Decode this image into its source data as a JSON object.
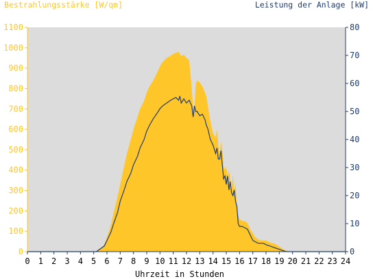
{
  "chart_data": {
    "type": "area",
    "ylabel_left": "Bestrahlungsstärke [W/qm]",
    "ylabel_right": "Leistung der Anlage [kW]",
    "xlabel": "Uhrzeit in Stunden",
    "xlim": [
      0,
      24
    ],
    "ylim_left": [
      0,
      1100
    ],
    "ylim_right": [
      0,
      80
    ],
    "x_ticks": [
      "0",
      "1",
      "2",
      "3",
      "4",
      "5",
      "6",
      "7",
      "8",
      "9",
      "10",
      "11",
      "12",
      "13",
      "14",
      "15",
      "16",
      "17",
      "18",
      "19",
      "20",
      "21",
      "22",
      "23",
      "24"
    ],
    "y_ticks_left": [
      "0",
      "100",
      "200",
      "300",
      "400",
      "500",
      "600",
      "700",
      "800",
      "900",
      "1000",
      "1100"
    ],
    "y_ticks_right": [
      "0",
      "10",
      "20",
      "30",
      "40",
      "50",
      "60",
      "70",
      "80"
    ],
    "grid": false,
    "colors": {
      "irradiance": "#FFC62A",
      "power": "#1F3B6E",
      "plot_background": "#DCDCDC",
      "axis_left": "#FFC62A",
      "axis_right": "#1F3B6E",
      "axis_bottom": "#1F3B6E"
    },
    "series": [
      {
        "axis": "left",
        "style": "area",
        "x": [
          0,
          5,
          5.3,
          5.5,
          5.8,
          6,
          6.3,
          6.5,
          6.8,
          7,
          7.3,
          7.5,
          7.8,
          8,
          8.3,
          8.5,
          8.8,
          9,
          9.2,
          9.5,
          9.8,
          10,
          10.2,
          10.5,
          10.8,
          11,
          11.2,
          11.4,
          11.5,
          11.6,
          11.8,
          12,
          12.2,
          12.4,
          12.5,
          12.6,
          12.7,
          12.8,
          13,
          13.2,
          13.4,
          13.5,
          13.6,
          13.8,
          14,
          14.2,
          14.3,
          14.4,
          14.5,
          14.6,
          14.7,
          14.8,
          14.9,
          15,
          15.1,
          15.2,
          15.3,
          15.4,
          15.5,
          15.6,
          15.7,
          15.8,
          15.9,
          16,
          16.2,
          16.4,
          16.6,
          16.8,
          17,
          17.2,
          17.4,
          17.6,
          17.8,
          18,
          18.3,
          18.6,
          18.9,
          19.2,
          19.5,
          19.8,
          20,
          24
        ],
        "y": [
          0,
          0,
          5,
          15,
          35,
          70,
          130,
          190,
          270,
          330,
          420,
          480,
          550,
          600,
          660,
          700,
          740,
          780,
          810,
          840,
          880,
          910,
          930,
          950,
          960,
          970,
          975,
          980,
          970,
          960,
          965,
          950,
          940,
          800,
          700,
          700,
          820,
          840,
          830,
          810,
          780,
          760,
          720,
          640,
          580,
          560,
          600,
          520,
          480,
          540,
          500,
          420,
          400,
          420,
          370,
          400,
          360,
          300,
          380,
          290,
          340,
          200,
          180,
          160,
          150,
          150,
          140,
          110,
          90,
          70,
          60,
          55,
          55,
          55,
          45,
          40,
          30,
          15,
          5,
          2,
          0,
          0
        ]
      },
      {
        "axis": "right",
        "style": "line",
        "x": [
          0,
          5.2,
          5.5,
          5.8,
          6,
          6.3,
          6.5,
          6.8,
          7,
          7.3,
          7.5,
          7.8,
          8,
          8.3,
          8.5,
          8.8,
          9,
          9.2,
          9.5,
          9.8,
          10,
          10.2,
          10.5,
          10.8,
          11,
          11.2,
          11.4,
          11.5,
          11.6,
          11.8,
          12,
          12.2,
          12.4,
          12.5,
          12.6,
          12.7,
          12.8,
          13,
          13.2,
          13.4,
          13.5,
          13.6,
          13.8,
          14,
          14.2,
          14.3,
          14.4,
          14.5,
          14.6,
          14.7,
          14.8,
          14.9,
          15,
          15.1,
          15.2,
          15.3,
          15.4,
          15.5,
          15.6,
          15.7,
          15.8,
          15.9,
          16,
          16.2,
          16.4,
          16.6,
          16.8,
          17,
          17.2,
          17.4,
          17.6,
          17.8,
          18,
          18.3,
          18.6,
          18.9,
          19.2,
          19.5,
          19.8,
          20,
          24
        ],
        "y": [
          0,
          0,
          1,
          2,
          4,
          7,
          10,
          14,
          18,
          22,
          25,
          28,
          31,
          34,
          37,
          40,
          43,
          45,
          47.5,
          49.5,
          51,
          52,
          53,
          54,
          54.5,
          55,
          54,
          55.5,
          53,
          54.5,
          53,
          54,
          52,
          48,
          52,
          50,
          50,
          48.5,
          49,
          47,
          45,
          44,
          40,
          38,
          35,
          37,
          33,
          33,
          36,
          31,
          26,
          27,
          24,
          27,
          22,
          25,
          21,
          20,
          22,
          18,
          16,
          10,
          9,
          9,
          8.5,
          8,
          6,
          4,
          3.5,
          3,
          3,
          3,
          2.5,
          2,
          1.5,
          1,
          0.5,
          0,
          0,
          0,
          0
        ]
      }
    ]
  }
}
